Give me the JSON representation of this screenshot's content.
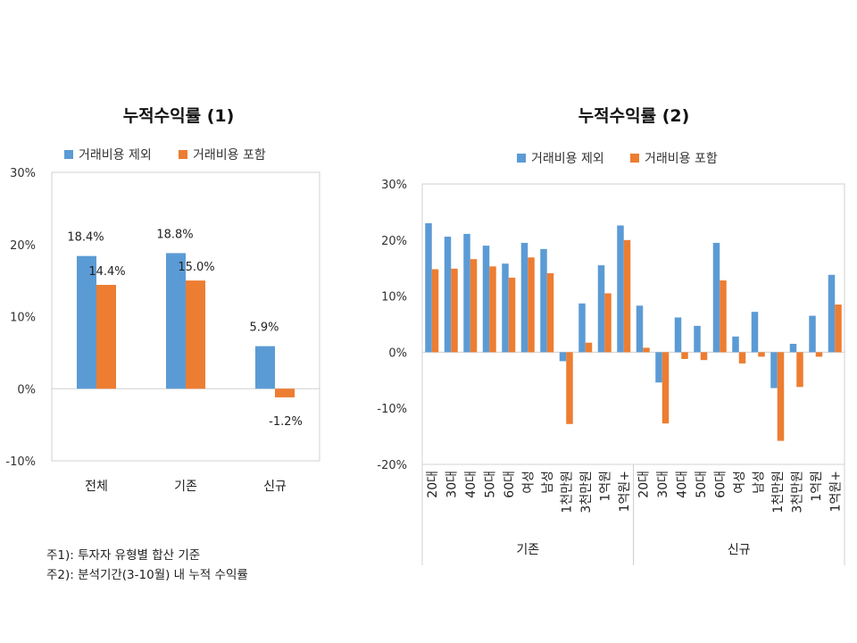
{
  "notes": [
    "주1): 투자자 유형별 합산 기준",
    "주2): 분석기간(3-10월) 내 누적 수익률"
  ],
  "colors": {
    "series1": "#5b9bd5",
    "series2": "#ed7d31"
  },
  "chart_data": [
    {
      "type": "bar",
      "title": "누적수익률 (1)",
      "categories": [
        "전체",
        "기존",
        "신규"
      ],
      "series": [
        {
          "name": "거래비용 제외",
          "values": [
            18.4,
            18.8,
            5.9
          ]
        },
        {
          "name": "거래비용 포함",
          "values": [
            14.4,
            15.0,
            -1.2
          ]
        }
      ],
      "data_labels": [
        [
          "18.4%",
          "18.8%",
          "5.9%"
        ],
        [
          "14.4%",
          "15.0%",
          "-1.2%"
        ]
      ],
      "ylim": [
        -10,
        30
      ],
      "yticks": [
        "30%",
        "20%",
        "10%",
        "0%",
        "-10%"
      ],
      "legend": "top"
    },
    {
      "type": "bar",
      "title": "누적수익률 (2)",
      "categories": [
        "20대",
        "30대",
        "40대",
        "50대",
        "60대",
        "여성",
        "남성",
        "1천만원",
        "3천만원",
        "1억원",
        "1억원+",
        "20대",
        "30대",
        "40대",
        "50대",
        "60대",
        "여성",
        "남성",
        "1천만원",
        "3천만원",
        "1억원",
        "1억원+"
      ],
      "groups": [
        {
          "label": "기존",
          "count": 11
        },
        {
          "label": "신규",
          "count": 11
        }
      ],
      "series": [
        {
          "name": "거래비용 제외",
          "values": [
            23.0,
            20.6,
            21.1,
            19.0,
            15.8,
            19.5,
            18.4,
            -1.6,
            8.7,
            15.5,
            22.6,
            8.3,
            -5.4,
            6.2,
            4.7,
            19.5,
            2.8,
            7.2,
            -6.4,
            1.5,
            6.5,
            13.8
          ]
        },
        {
          "name": "거래비용 포함",
          "values": [
            14.8,
            14.9,
            16.6,
            15.3,
            13.3,
            16.9,
            14.1,
            -12.8,
            1.7,
            10.5,
            20.0,
            0.8,
            -12.7,
            -1.2,
            -1.4,
            12.8,
            -2.0,
            -0.8,
            -15.8,
            -6.2,
            -0.8,
            8.5
          ]
        }
      ],
      "ylim": [
        -20,
        30
      ],
      "yticks": [
        "30%",
        "20%",
        "10%",
        "0%",
        "-10%",
        "-20%"
      ],
      "legend": "top"
    }
  ]
}
